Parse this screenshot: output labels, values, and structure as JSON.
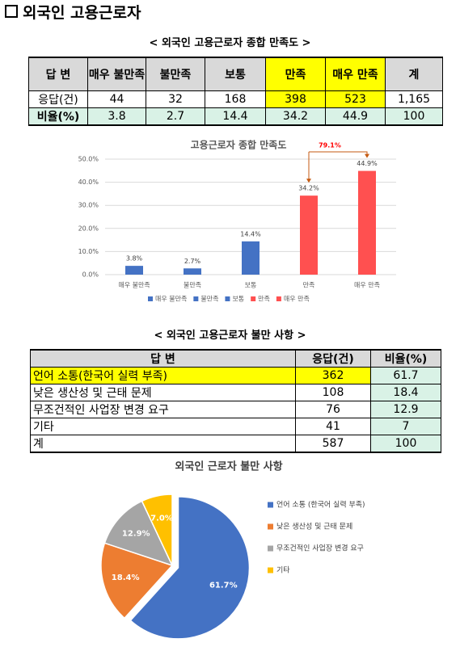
{
  "header": {
    "title": "외국인 고용근로자"
  },
  "table1": {
    "title": "< 외국인 고용근로자 종합 만족도 >",
    "header": [
      "답 변",
      "매우 불만족",
      "불만족",
      "보통",
      "만족",
      "매우 만족",
      "계"
    ],
    "rows": [
      [
        "응답(건)",
        44,
        32,
        168,
        398,
        523,
        "1,165"
      ],
      [
        "비율(%)",
        3.8,
        2.7,
        14.4,
        34.2,
        44.9,
        100
      ]
    ]
  },
  "table2": {
    "title": "< 외국인 고용근로자 불만 사항 >",
    "header": [
      "답 변",
      "응답(건)",
      "비율(%)"
    ],
    "rows": [
      [
        "언어 소통(한국어 실력 부족)",
        362,
        61.7
      ],
      [
        "낮은 생산성 및 근태 문제",
        108,
        18.4
      ],
      [
        "무조건적인 사업장 변경 요구",
        76,
        12.9
      ],
      [
        "기타",
        41,
        7
      ],
      [
        "계",
        587,
        100
      ]
    ]
  },
  "chart_data": [
    {
      "type": "bar",
      "title": "고용근로자 종합 만족도",
      "categories": [
        "매우 불만족",
        "불만족",
        "보통",
        "만족",
        "매우 만족"
      ],
      "values": [
        3.8,
        2.7,
        14.4,
        34.2,
        44.9
      ],
      "value_labels": [
        "3.8%",
        "2.7%",
        "14.4%",
        "34.2%",
        "44.9%"
      ],
      "colors": [
        "#4472c4",
        "#4472c4",
        "#4472c4",
        "#ff5050",
        "#ff5050"
      ],
      "ylim": [
        0,
        50
      ],
      "yticks": [
        {
          "value": 0,
          "label": "0.0%"
        },
        {
          "value": 10,
          "label": "10.0%"
        },
        {
          "value": 20,
          "label": "20.0%"
        },
        {
          "value": 30,
          "label": "30.0%"
        },
        {
          "value": 40,
          "label": "40.0%"
        },
        {
          "value": 50,
          "label": "50.0%"
        }
      ],
      "grid": true,
      "legend": "bottom",
      "annotation": "79.1%"
    },
    {
      "type": "pie",
      "title": "외국인 근로자 불만 사항",
      "categories": [
        "언어 소통 (한국어 실력 부족)",
        "낮은 생산성 및 근태 문제",
        "무조건적인 사업장 변경 요구",
        "기타"
      ],
      "values": [
        61.7,
        18.4,
        12.9,
        7.0
      ],
      "value_labels": [
        "61.7%",
        "18.4%",
        "12.9%",
        "7.0%"
      ],
      "colors": [
        "#4472c4",
        "#ed7d31",
        "#a5a5a5",
        "#ffc000"
      ],
      "legend": "right"
    }
  ]
}
